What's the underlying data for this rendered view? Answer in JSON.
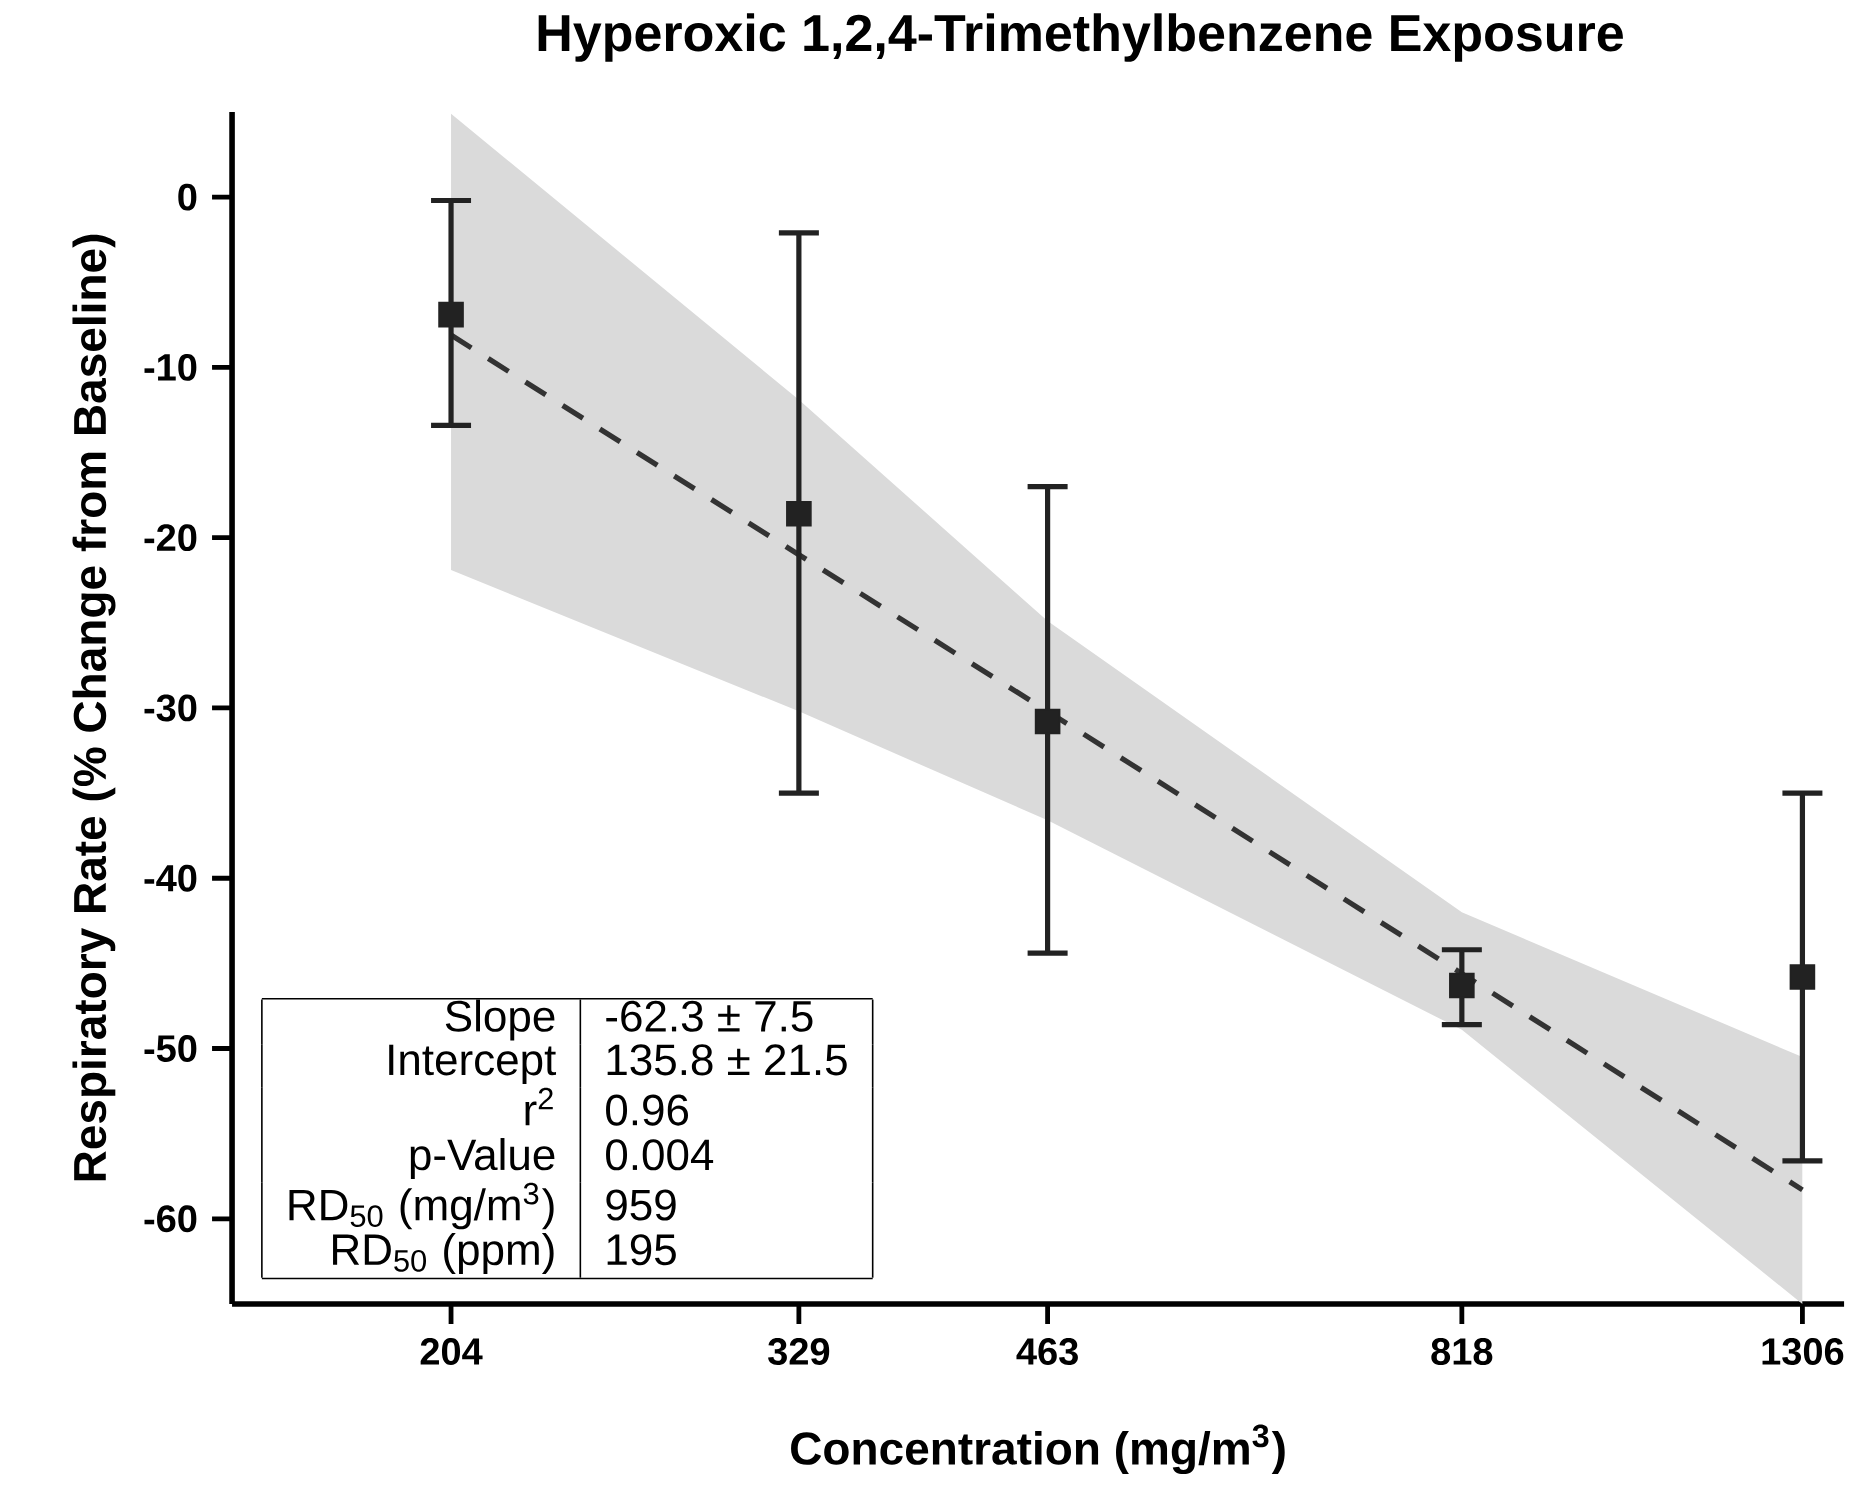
{
  "chart_data": {
    "type": "scatter",
    "title": "Hyperoxic 1,2,4-Trimethylbenzene Exposure",
    "xlabel": "Concentration (mg/m$^{3}$)",
    "ylabel": "Respiratory Rate (% Change from Baseline)",
    "log": "x",
    "xlim": [
      151,
      1383
    ],
    "xticks": [
      204,
      329,
      463,
      818,
      1306
    ],
    "ylim": [
      -65,
      5
    ],
    "yticks": [
      -60,
      -50,
      -40,
      -30,
      -20,
      -10,
      0
    ],
    "grid": false,
    "series": [
      {
        "color": "#222222",
        "marker": "square",
        "x": [
          204,
          329,
          463,
          818,
          1306
        ],
        "values": [
          -6.9,
          -18.6,
          -30.8,
          -46.3,
          -45.8
        ],
        "errors": [
          [
            -13.4,
            -0.2
          ],
          [
            -35.0,
            -2.1
          ],
          [
            -44.4,
            -17.0
          ],
          [
            -48.6,
            -44.2
          ],
          [
            -56.6,
            -35.0
          ]
        ]
      },
      {
        "type": "line",
        "color": "#333333",
        "line_style": "dashed",
        "x": [
          204,
          329,
          463,
          818,
          1306
        ],
        "values": [
          -8.1,
          -21.0,
          -30.2,
          -45.6,
          -58.3
        ],
        "lower": [
          -21.9,
          -30.2,
          -36.6,
          -48.9,
          -65.0
        ],
        "upper": [
          4.9,
          -11.9,
          -24.9,
          -42.0,
          -50.5
        ]
      }
    ],
    "annotations": [
      "Slope",
      "-62.3 ± 7.5",
      "Intercept",
      "135.8 ± 21.5",
      "r$^{2}$",
      "0.96",
      "p-Value",
      "0.004",
      "RD$_{50}$ (mg/m$^{3}$)",
      "959",
      "RD$_{50}$ (ppm)",
      "195"
    ]
  }
}
